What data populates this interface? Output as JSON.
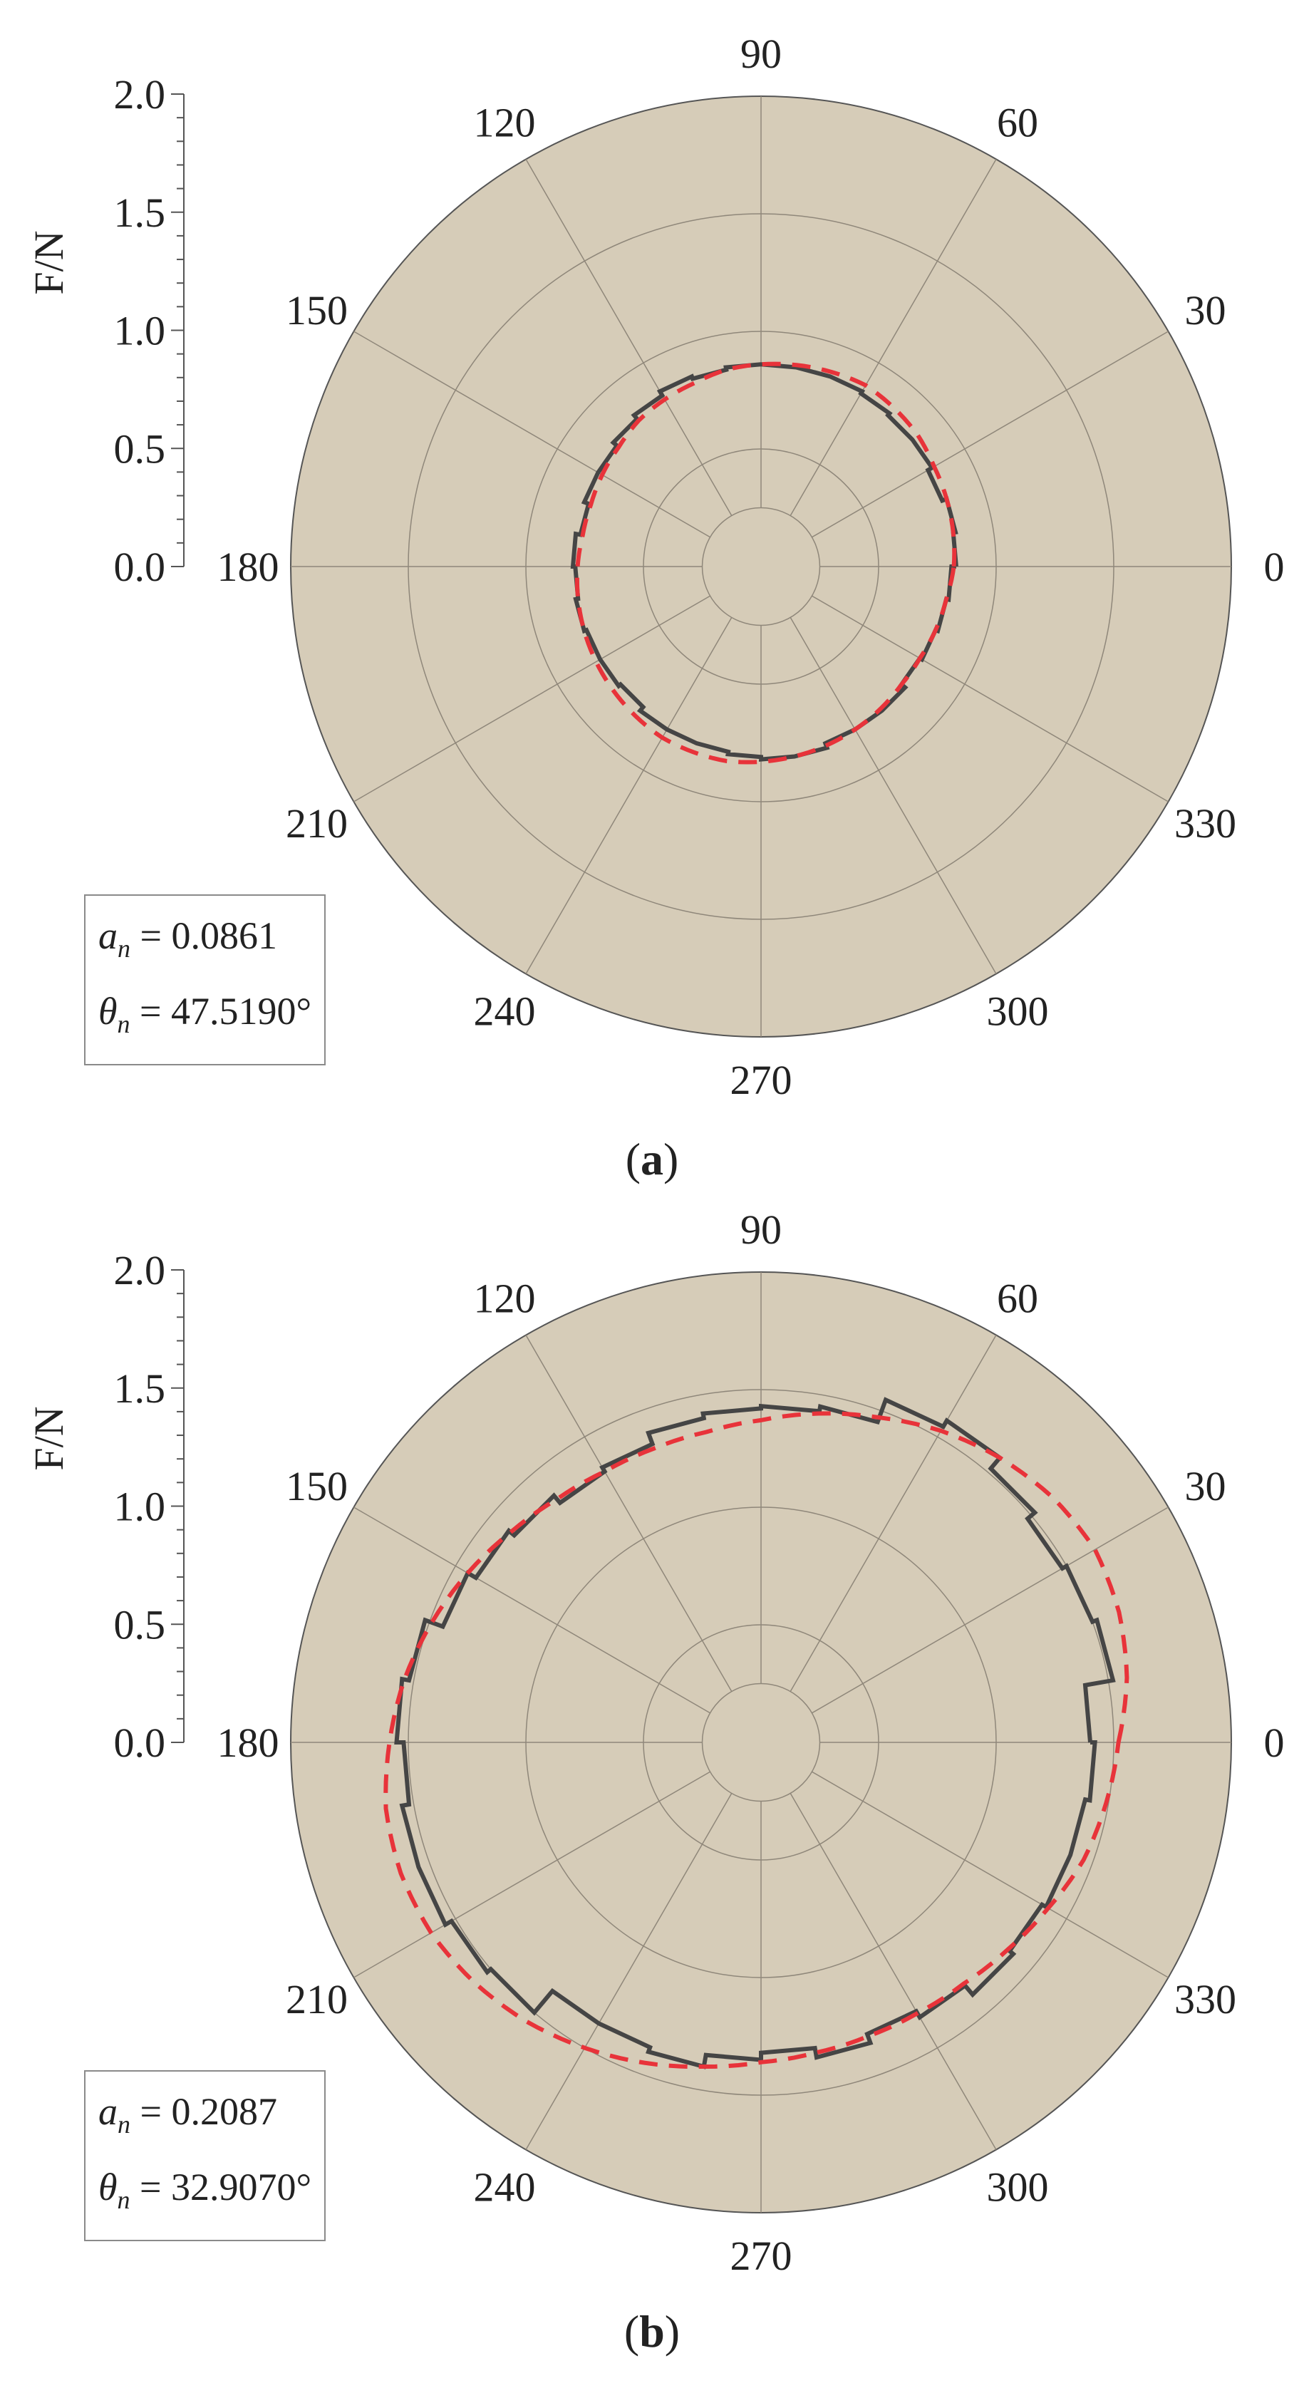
{
  "chart_data": [
    {
      "type": "line",
      "polar": true,
      "panel_label": "a",
      "radial_axis": {
        "label": "F/N",
        "ticks": [
          "0.0",
          "0.5",
          "1.0",
          "1.5",
          "2.0"
        ],
        "range": [
          0,
          2.0
        ]
      },
      "angular_axis": {
        "ticks": [
          "0",
          "30",
          "60",
          "90",
          "120",
          "150",
          "180",
          "210",
          "240",
          "270",
          "300",
          "330"
        ],
        "unit": "deg"
      },
      "background_color": "#d6ccb8",
      "grid": true,
      "annotation": {
        "a_symbol": "a",
        "a_sub": "n",
        "a_value": "= 0.0861",
        "theta_symbol": "θ",
        "theta_sub": "n",
        "theta_value": "= 47.5190°"
      },
      "series": [
        {
          "style": "solid",
          "color": "#454545",
          "theta": [
            0,
            10,
            20,
            30,
            40,
            50,
            60,
            70,
            80,
            90,
            100,
            110,
            120,
            130,
            140,
            150,
            160,
            170,
            180,
            190,
            200,
            210,
            220,
            230,
            240,
            250,
            260,
            270,
            280,
            290,
            300,
            310,
            320,
            330,
            340,
            350
          ],
          "r": [
            0.83,
            0.84,
            0.82,
            0.84,
            0.84,
            0.85,
            0.86,
            0.86,
            0.86,
            0.86,
            0.85,
            0.86,
            0.84,
            0.82,
            0.8,
            0.8,
            0.78,
            0.8,
            0.79,
            0.8,
            0.79,
            0.79,
            0.78,
            0.8,
            0.8,
            0.8,
            0.81,
            0.82,
            0.82,
            0.8,
            0.8,
            0.8,
            0.78,
            0.79,
            0.8,
            0.81
          ]
        },
        {
          "style": "dashed",
          "color": "#e8333a",
          "fit": "ellipse",
          "a": 0.0861,
          "theta_deg": 47.519,
          "mean_r": 0.82,
          "r": [
            0.82,
            0.83,
            0.84,
            0.85,
            0.87,
            0.88,
            0.89,
            0.88,
            0.87,
            0.86,
            0.85,
            0.83,
            0.82,
            0.81,
            0.79,
            0.78,
            0.77,
            0.77,
            0.78,
            0.79,
            0.8,
            0.81,
            0.82,
            0.83,
            0.84,
            0.84,
            0.84,
            0.83,
            0.82,
            0.81,
            0.8,
            0.79,
            0.78,
            0.78,
            0.79,
            0.8
          ]
        }
      ]
    },
    {
      "type": "line",
      "polar": true,
      "panel_label": "b",
      "radial_axis": {
        "label": "F/N",
        "ticks": [
          "0.0",
          "0.5",
          "1.0",
          "1.5",
          "2.0"
        ],
        "range": [
          0,
          2.0
        ]
      },
      "angular_axis": {
        "ticks": [
          "0",
          "30",
          "60",
          "90",
          "120",
          "150",
          "180",
          "210",
          "240",
          "270",
          "300",
          "330"
        ],
        "unit": "deg"
      },
      "background_color": "#d6ccb8",
      "grid": true,
      "annotation": {
        "a_symbol": "a",
        "a_sub": "n",
        "a_value": "= 0.2087",
        "theta_symbol": "θ",
        "theta_sub": "n",
        "theta_value": "= 32.9070°"
      },
      "series": [
        {
          "style": "solid",
          "color": "#454545",
          "theta": [
            0,
            10,
            20,
            30,
            40,
            50,
            60,
            70,
            80,
            90,
            100,
            110,
            120,
            130,
            140,
            150,
            160,
            170,
            180,
            190,
            200,
            210,
            220,
            230,
            240,
            250,
            260,
            270,
            280,
            290,
            300,
            310,
            320,
            330,
            340,
            350
          ],
          "r": [
            1.4,
            1.52,
            1.5,
            1.48,
            1.52,
            1.58,
            1.55,
            1.45,
            1.43,
            1.42,
            1.4,
            1.35,
            1.33,
            1.37,
            1.4,
            1.44,
            1.52,
            1.55,
            1.52,
            1.55,
            1.55,
            1.52,
            1.5,
            1.38,
            1.38,
            1.4,
            1.35,
            1.32,
            1.36,
            1.32,
            1.35,
            1.4,
            1.38,
            1.4,
            1.4,
            1.42
          ]
        },
        {
          "style": "dashed",
          "color": "#e8333a",
          "fit": "ellipse",
          "a": 0.2087,
          "theta_deg": 32.907,
          "mean_r": 1.47,
          "r": [
            1.52,
            1.58,
            1.62,
            1.64,
            1.62,
            1.58,
            1.53,
            1.47,
            1.42,
            1.37,
            1.34,
            1.33,
            1.33,
            1.35,
            1.39,
            1.44,
            1.49,
            1.54,
            1.58,
            1.62,
            1.63,
            1.62,
            1.59,
            1.55,
            1.5,
            1.45,
            1.4,
            1.36,
            1.34,
            1.33,
            1.33,
            1.34,
            1.37,
            1.41,
            1.46,
            1.49
          ]
        }
      ]
    }
  ]
}
